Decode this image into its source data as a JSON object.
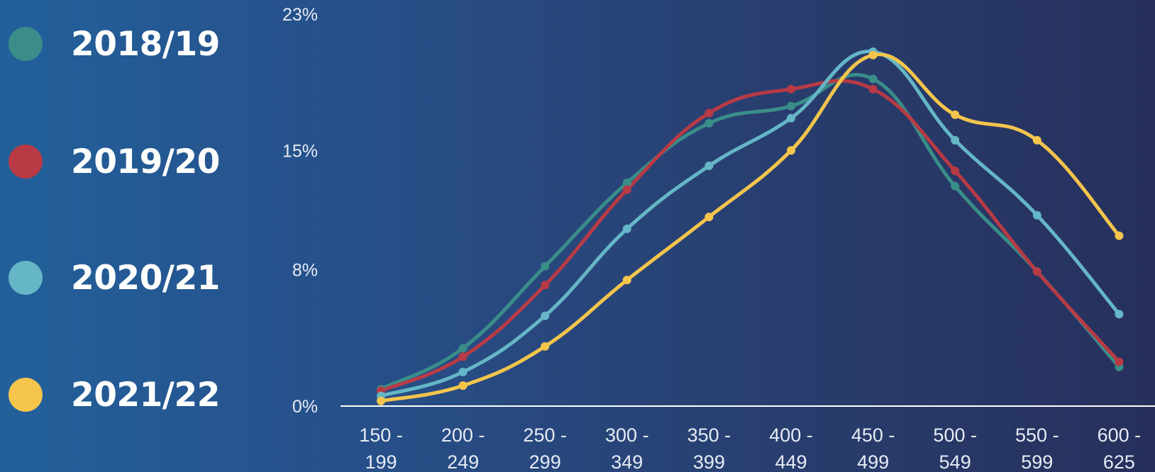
{
  "chart_data": {
    "type": "line",
    "title": "",
    "xlabel": "",
    "ylabel": "",
    "ylim": [
      0,
      23
    ],
    "yticks": [
      "0%",
      "8%",
      "15%",
      "23%"
    ],
    "categories": [
      "150 - 199",
      "200 - 249",
      "250 - 299",
      "300 - 349",
      "350 - 399",
      "400 - 449",
      "450 - 499",
      "500 - 549",
      "550 - 599",
      "600 - 625"
    ],
    "category_lines": [
      [
        "150 -",
        "199"
      ],
      [
        "200 -",
        "249"
      ],
      [
        "250 -",
        "299"
      ],
      [
        "300 -",
        "349"
      ],
      [
        "350 -",
        "399"
      ],
      [
        "400 -",
        "449"
      ],
      [
        "450 -",
        "499"
      ],
      [
        "500 -",
        "549"
      ],
      [
        "550 -",
        "599"
      ],
      [
        "600 -",
        "625"
      ]
    ],
    "legend_position": "left",
    "grid": false,
    "series": [
      {
        "name": "2018/19",
        "color": "#3a8d89",
        "values": [
          1.0,
          3.4,
          8.2,
          13.1,
          16.6,
          17.6,
          19.2,
          12.9,
          7.9,
          2.3
        ]
      },
      {
        "name": "2019/20",
        "color": "#b83a45",
        "values": [
          0.9,
          2.9,
          7.1,
          12.7,
          17.2,
          18.6,
          18.6,
          13.8,
          7.9,
          2.6
        ]
      },
      {
        "name": "2020/21",
        "color": "#65b6c6",
        "values": [
          0.6,
          2.0,
          5.3,
          10.4,
          14.1,
          16.9,
          20.8,
          15.6,
          11.2,
          5.4
        ]
      },
      {
        "name": "2021/22",
        "color": "#f5c54c",
        "values": [
          0.3,
          1.2,
          3.5,
          7.4,
          11.1,
          15.0,
          20.6,
          17.1,
          15.6,
          10.0
        ]
      }
    ]
  }
}
